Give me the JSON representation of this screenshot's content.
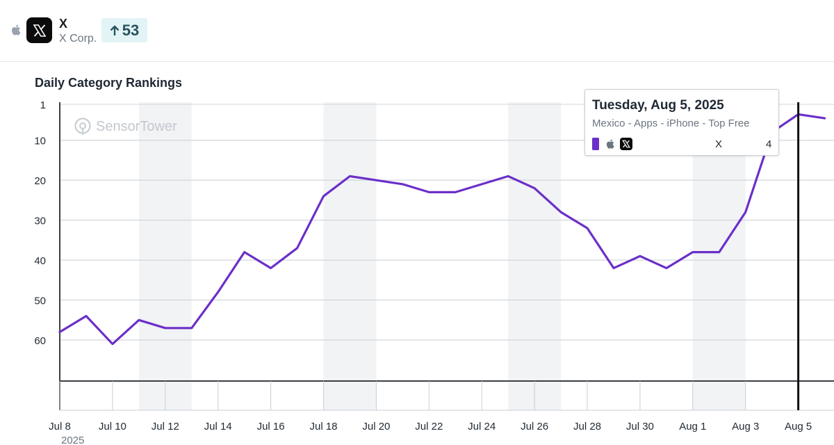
{
  "app": {
    "name": "X",
    "publisher": "X Corp.",
    "rank_change": "53",
    "platform_icon": "apple-icon",
    "app_icon": "x-logo-icon"
  },
  "chart_data": {
    "type": "line",
    "title": "Daily Category Rankings",
    "watermark": "SensorTower",
    "y_inverted": true,
    "ylim": [
      1,
      70
    ],
    "yticks": [
      1,
      10,
      20,
      30,
      40,
      50,
      60
    ],
    "xlabel_year": "2025",
    "x_tick_labels": [
      "Jul 8",
      "Jul 10",
      "Jul 12",
      "Jul 14",
      "Jul 16",
      "Jul 18",
      "Jul 20",
      "Jul 22",
      "Jul 24",
      "Jul 26",
      "Jul 28",
      "Jul 30",
      "Aug 1",
      "Aug 3",
      "Aug 5"
    ],
    "weekend_bands": [
      [
        "Jul 11",
        "Jul 13"
      ],
      [
        "Jul 18",
        "Jul 20"
      ],
      [
        "Jul 25",
        "Jul 27"
      ],
      [
        "Aug 1",
        "Aug 3"
      ]
    ],
    "series": [
      {
        "color": "#6b2fc8",
        "x": [
          "Jul 8",
          "Jul 9",
          "Jul 10",
          "Jul 11",
          "Jul 12",
          "Jul 13",
          "Jul 14",
          "Jul 15",
          "Jul 16",
          "Jul 17",
          "Jul 18",
          "Jul 19",
          "Jul 20",
          "Jul 21",
          "Jul 22",
          "Jul 23",
          "Jul 24",
          "Jul 25",
          "Jul 26",
          "Jul 27",
          "Jul 28",
          "Jul 29",
          "Jul 30",
          "Jul 31",
          "Aug 1",
          "Aug 2",
          "Aug 3",
          "Aug 4",
          "Aug 5",
          "Aug 6"
        ],
        "values": [
          58,
          54,
          61,
          55,
          57,
          57,
          48,
          38,
          42,
          37,
          24,
          19,
          20,
          21,
          23,
          23,
          21,
          19,
          22,
          28,
          32,
          42,
          39,
          42,
          38,
          38,
          28,
          8,
          3.5,
          4.5
        ]
      }
    ],
    "highlight_date": "Aug 5"
  },
  "tooltip": {
    "date": "Tuesday, Aug 5, 2025",
    "subtitle": "Mexico - Apps - iPhone - Top Free",
    "app": "X",
    "rank": "4"
  }
}
